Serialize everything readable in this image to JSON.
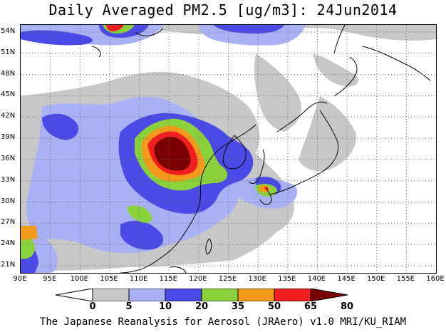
{
  "title": "Daily Averaged PM2.5 [ug/m3]: 24Jun2014",
  "footer": "The Japanese Reanalysis for Aerosol (JRAero) v1.0 MRI/KU_RIAM",
  "map": {
    "lon_range": [
      90,
      160
    ],
    "lat_range": [
      20,
      55
    ],
    "lat_ticks": [
      "54N",
      "51N",
      "48N",
      "45N",
      "42N",
      "39N",
      "36N",
      "33N",
      "30N",
      "27N",
      "24N",
      "21N"
    ],
    "lon_ticks": [
      "90E",
      "95E",
      "100E",
      "105E",
      "110E",
      "115E",
      "120E",
      "125E",
      "130E",
      "135E",
      "140E",
      "145E",
      "150E",
      "155E",
      "160E"
    ],
    "gridlines": "dotted",
    "coastlines": true
  },
  "colorbar": {
    "labels": [
      "0",
      "5",
      "10",
      "20",
      "35",
      "50",
      "65",
      "80"
    ],
    "colors": [
      "#ffffff",
      "#c8c8c8",
      "#a9b1f5",
      "#4a4ae6",
      "#8ad23c",
      "#f39a1c",
      "#f01e1e",
      "#7a0000"
    ]
  }
}
